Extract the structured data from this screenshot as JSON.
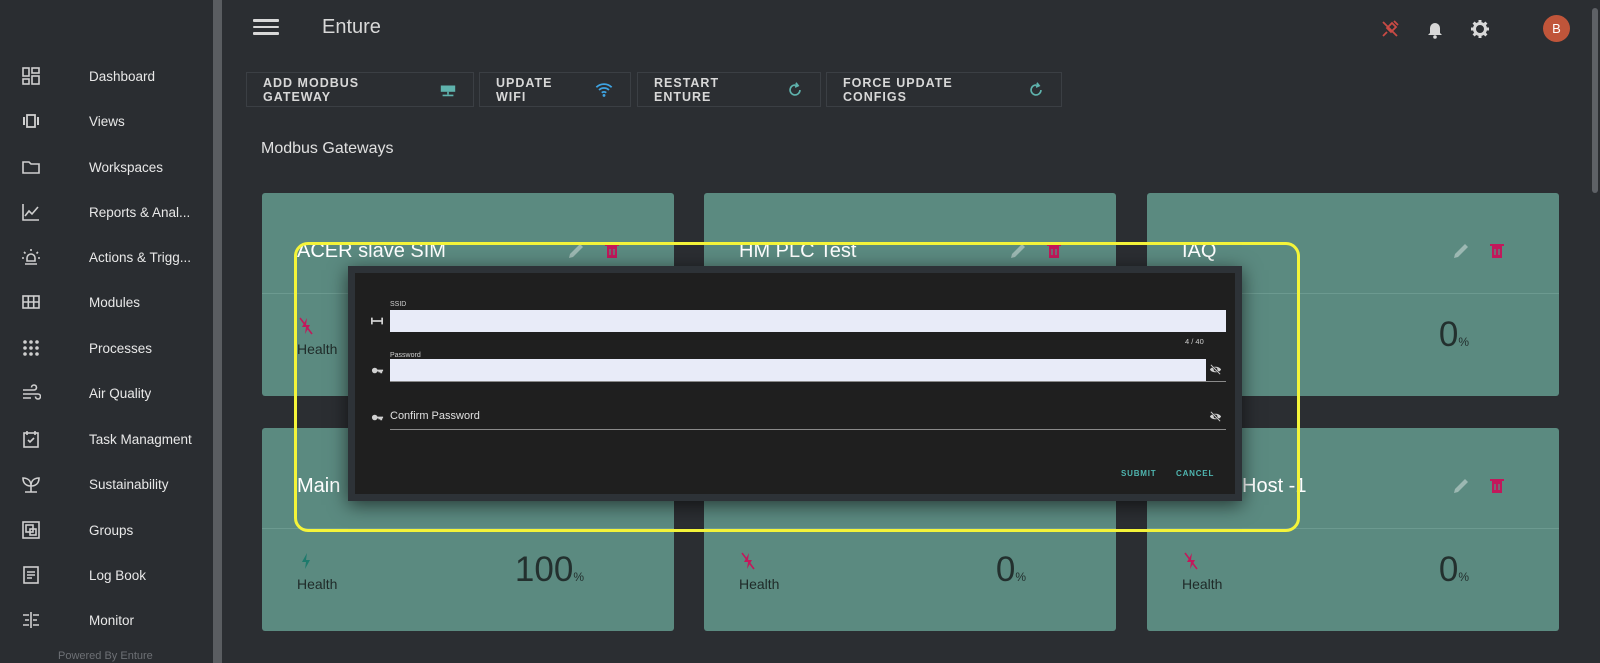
{
  "header": {
    "app_title": "Enture",
    "avatar_initial": "B"
  },
  "sidebar": {
    "items": [
      {
        "label": "Dashboard",
        "icon": "dashboard-icon"
      },
      {
        "label": "Views",
        "icon": "views-icon"
      },
      {
        "label": "Workspaces",
        "icon": "folder-icon"
      },
      {
        "label": "Reports & Anal...",
        "icon": "chart-icon"
      },
      {
        "label": "Actions & Trigg...",
        "icon": "lightbulb-icon"
      },
      {
        "label": "Modules",
        "icon": "grid-icon"
      },
      {
        "label": "Processes",
        "icon": "dots-grid-icon"
      },
      {
        "label": "Air Quality",
        "icon": "air-icon"
      },
      {
        "label": "Task Managment",
        "icon": "task-icon"
      },
      {
        "label": "Sustainability",
        "icon": "leaf-icon"
      },
      {
        "label": "Groups",
        "icon": "groups-icon"
      },
      {
        "label": "Log Book",
        "icon": "logbook-icon"
      },
      {
        "label": "Monitor",
        "icon": "monitor-icon"
      }
    ],
    "powered_by": "Powered By Enture"
  },
  "toolbar": {
    "add_gateway": "ADD MODBUS GATEWAY",
    "update_wifi": "UPDATE WIFI",
    "restart": "RESTART ENTURE",
    "force_update": "FORCE UPDATE CONFIGS"
  },
  "section_title": "Modbus Gateways",
  "cards": [
    {
      "title": "ACER slave SIM",
      "health_label": "Health",
      "value": "",
      "unit": ""
    },
    {
      "title": "HM PLC Test",
      "health_label": "",
      "value": "",
      "unit": ""
    },
    {
      "title": "IAQ",
      "health_label": "",
      "value": "0",
      "unit": "%"
    },
    {
      "title": "Main",
      "health_label": "Health",
      "value": "100",
      "unit": "%"
    },
    {
      "title": "",
      "health_label": "Health",
      "value": "0",
      "unit": "%"
    },
    {
      "title": "Host -1",
      "health_label": "Health",
      "value": "0",
      "unit": "%"
    }
  ],
  "dialog": {
    "ssid_label": "SSID",
    "ssid_counter": "4 / 40",
    "password_label": "Password",
    "confirm_label": "Confirm Password",
    "submit": "SUBMIT",
    "cancel": "CANCEL"
  },
  "colors": {
    "card_bg": "#5b8a80",
    "accent_teal": "#4fb6b0",
    "delete_red": "#c2185b",
    "highlight": "#f4f43a"
  }
}
